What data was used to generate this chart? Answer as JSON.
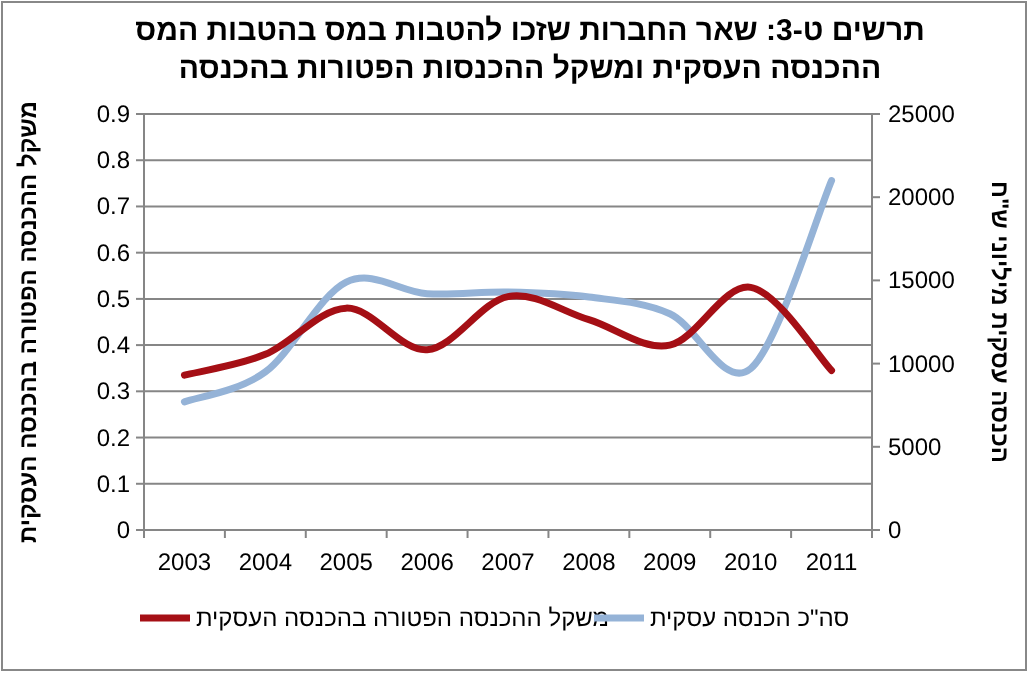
{
  "chart_data": {
    "type": "line",
    "title": "תרשים ט-3: שאר החברות שזכו להטבות במס בהטבות המס\nההכנסה העסקית ומשקל ההכנסות הפטורות בהכנסה",
    "ylabel": "משקל ההכנסה הפטורה בהכנסה העסקית",
    "y2label": "הכנסה עסקית מיליוני ש\"ח",
    "categories": [
      "2003",
      "2004",
      "2005",
      "2006",
      "2007",
      "2008",
      "2009",
      "2010",
      "2011"
    ],
    "series": [
      {
        "name": "משקל ההכנסה הפטורה בהכנסה העסקית",
        "color": "#a50f15",
        "values": [
          0.335,
          0.38,
          0.48,
          0.39,
          0.505,
          0.455,
          0.4,
          0.525,
          0.345
        ]
      },
      {
        "name": "סה\"כ הכנסה עסקית",
        "color": "#95b3d7",
        "axis": "y2",
        "values": [
          7700,
          9500,
          14900,
          14200,
          14300,
          14000,
          13000,
          9700,
          21000
        ]
      }
    ],
    "ylim": [
      0,
      0.9
    ],
    "yticks": [
      0,
      0.1,
      0.2,
      0.3,
      0.4,
      0.5,
      0.6,
      0.7,
      0.8,
      0.9
    ],
    "y2lim": [
      0,
      25000
    ],
    "y2ticks": [
      0,
      5000,
      10000,
      15000,
      20000,
      25000
    ],
    "grid": "y",
    "legend": "bottom",
    "marker": "none",
    "line_style": "solid"
  }
}
